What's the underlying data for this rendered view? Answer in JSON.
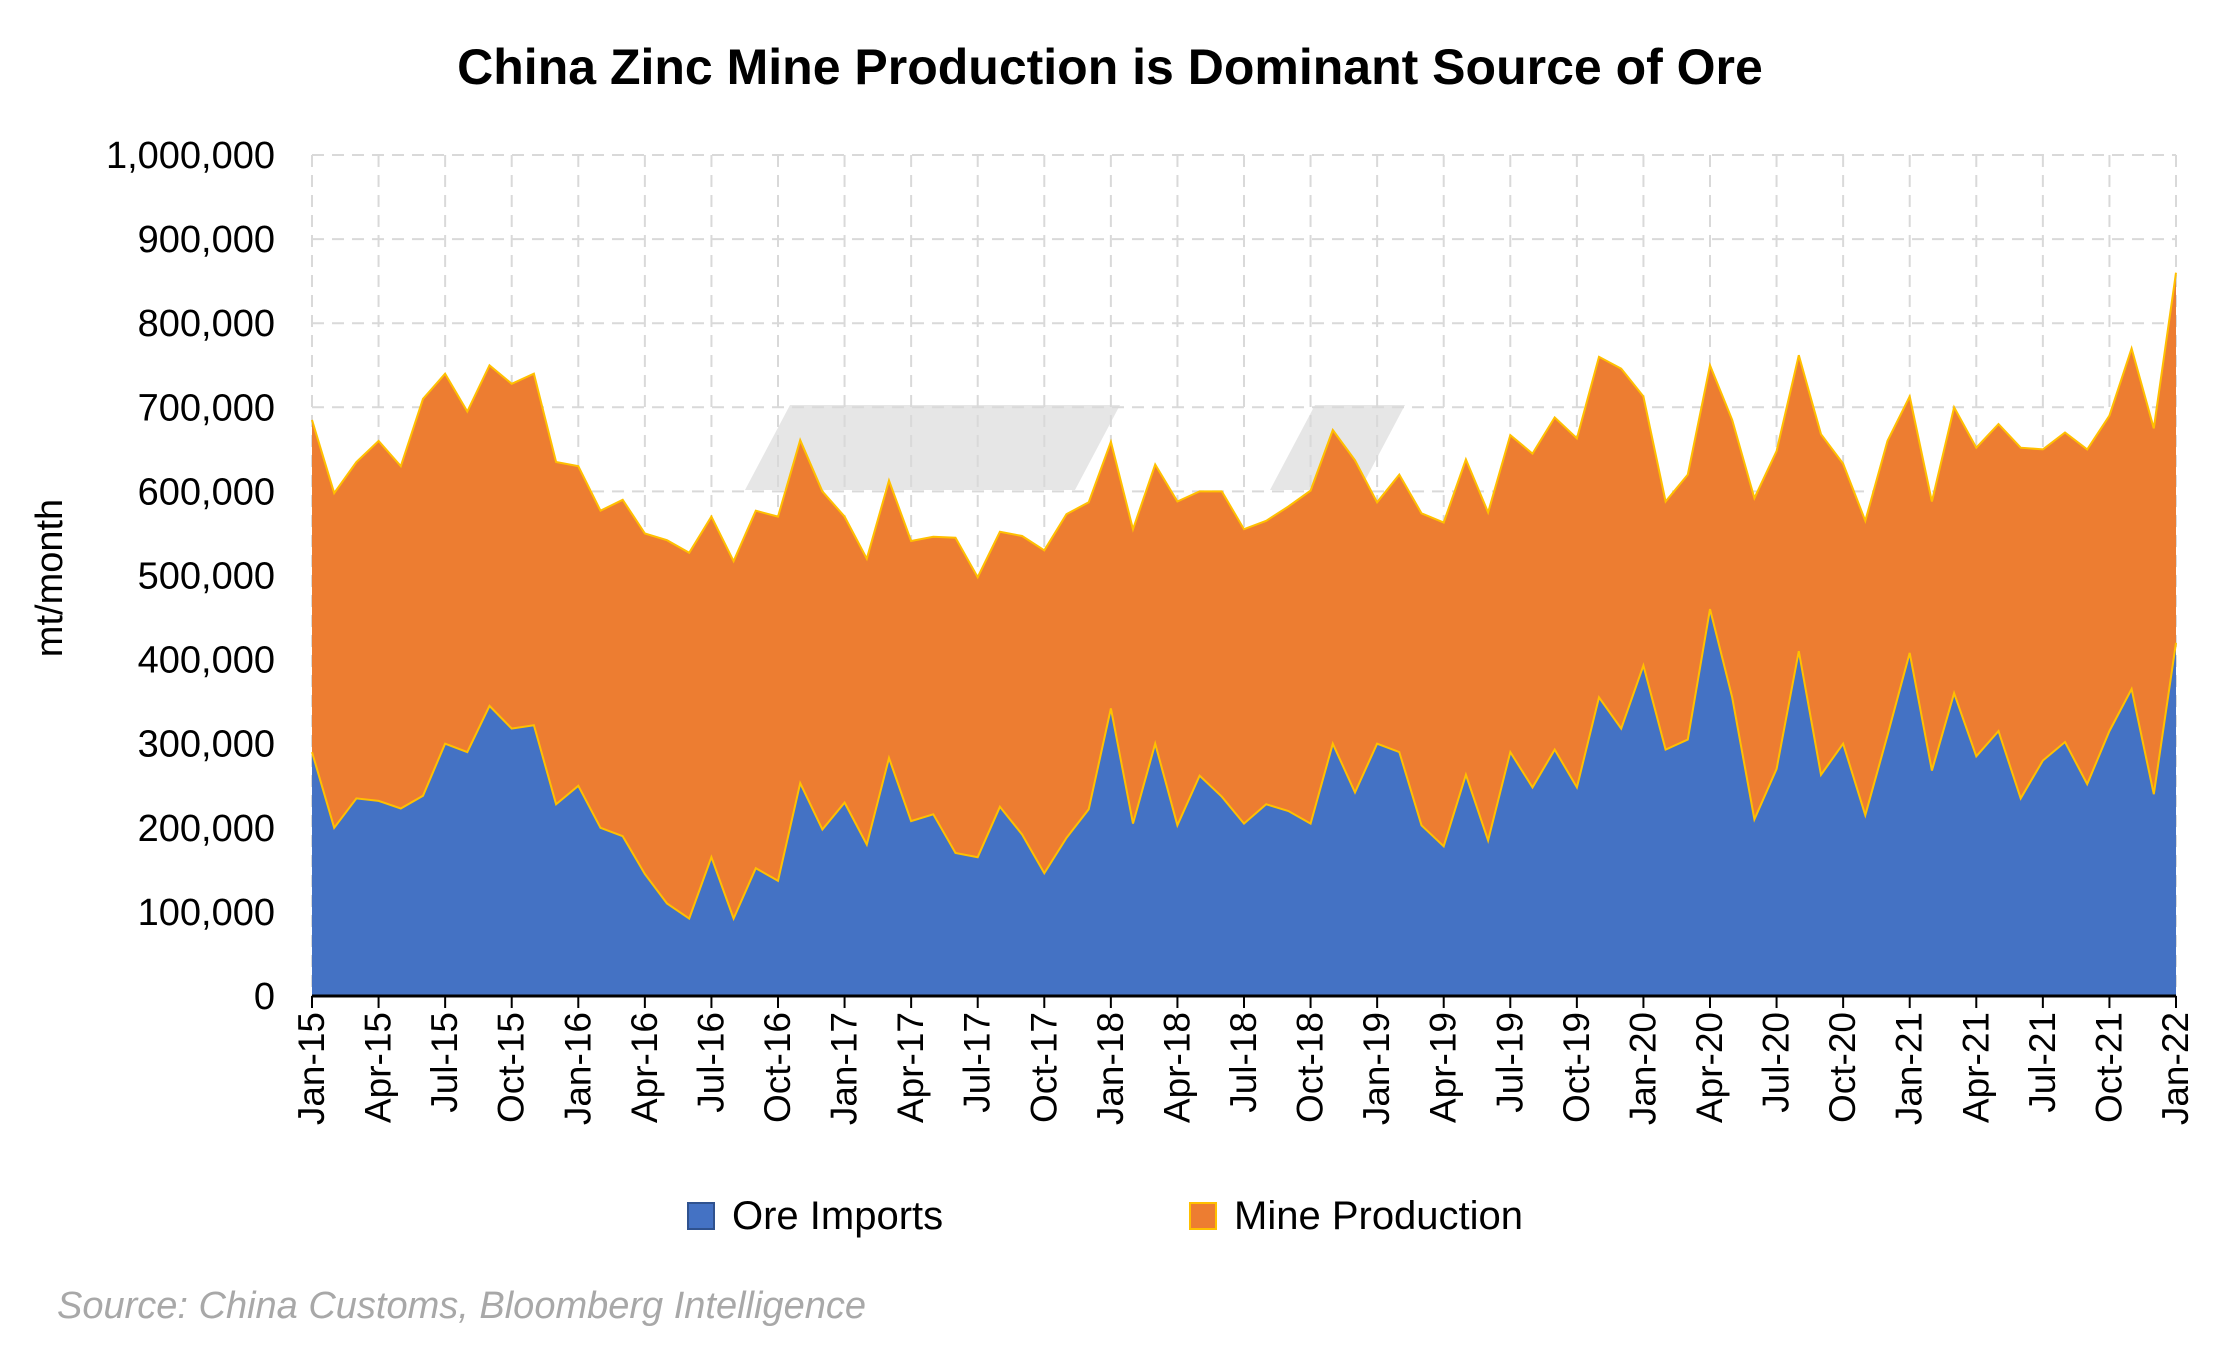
{
  "chart_data": {
    "type": "area",
    "title": "China Zinc Mine Production is Dominant Source of Ore",
    "xlabel": "",
    "ylabel": "mt/month",
    "ylim": [
      0,
      1000000
    ],
    "yticks": [
      "0",
      "100,000",
      "200,000",
      "300,000",
      "400,000",
      "500,000",
      "600,000",
      "700,000",
      "800,000",
      "900,000",
      "1,000,000"
    ],
    "ytick_values": [
      0,
      100000,
      200000,
      300000,
      400000,
      500000,
      600000,
      700000,
      800000,
      900000,
      1000000
    ],
    "x_start": "Jan-15",
    "x_end": "Jan-22",
    "xtick_labels": [
      "Jan-15",
      "Apr-15",
      "Jul-15",
      "Oct-15",
      "Jan-16",
      "Apr-16",
      "Jul-16",
      "Oct-16",
      "Jan-17",
      "Apr-17",
      "Jul-17",
      "Oct-17",
      "Jan-18",
      "Apr-18",
      "Jul-18",
      "Oct-18",
      "Jan-19",
      "Apr-19",
      "Jul-19",
      "Oct-19",
      "Jan-20",
      "Apr-20",
      "Jul-20",
      "Oct-20",
      "Jan-21",
      "Apr-21",
      "Jul-21",
      "Oct-21",
      "Jan-22"
    ],
    "stacked": true,
    "grid": true,
    "legend_position": "bottom",
    "series": [
      {
        "name": "Ore Imports",
        "color": "#4472c4",
        "values": [
          290000,
          200000,
          235000,
          232000,
          223000,
          238000,
          300000,
          290000,
          345000,
          318000,
          322000,
          228000,
          250000,
          200000,
          190000,
          145000,
          110000,
          92000,
          165000,
          92000,
          152000,
          137000,
          253000,
          198000,
          230000,
          180000,
          283000,
          208000,
          216000,
          170000,
          165000,
          225000,
          192000,
          146000,
          188000,
          222000,
          342000,
          205000,
          300000,
          203000,
          262000,
          237000,
          205000,
          228000,
          220000,
          205000,
          300000,
          242000,
          300000,
          290000,
          203000,
          178000,
          263000,
          185000,
          290000,
          248000,
          293000,
          248000,
          355000,
          318000,
          393000,
          293000,
          305000,
          460000,
          355000,
          210000,
          270000,
          410000,
          263000,
          300000,
          215000,
          310000,
          408000,
          268000,
          360000,
          285000,
          315000,
          235000,
          280000,
          302000,
          252000,
          315000,
          365000,
          240000,
          420000
        ]
      },
      {
        "name": "Mine Production",
        "color": "#ed7d31",
        "values": [
          395000,
          398000,
          400000,
          428000,
          407000,
          472000,
          440000,
          405000,
          405000,
          410000,
          418000,
          407000,
          380000,
          377000,
          400000,
          405000,
          432000,
          435000,
          405000,
          425000,
          425000,
          433000,
          408000,
          402000,
          340000,
          340000,
          330000,
          333000,
          330000,
          375000,
          333000,
          327000,
          355000,
          384000,
          385000,
          365000,
          317000,
          350000,
          332000,
          385000,
          338000,
          363000,
          350000,
          337000,
          362000,
          396000,
          373000,
          395000,
          287000,
          330000,
          371000,
          385000,
          375000,
          390000,
          377000,
          397000,
          395000,
          415000,
          405000,
          428000,
          320000,
          295000,
          315000,
          290000,
          330000,
          382000,
          378000,
          352000,
          405000,
          333000,
          350000,
          350000,
          305000,
          320000,
          340000,
          367000,
          365000,
          417000,
          370000,
          368000,
          398000,
          375000,
          405000,
          435000,
          440000
        ]
      }
    ],
    "source": "Source: China Customs, Bloomberg Intelligence"
  }
}
